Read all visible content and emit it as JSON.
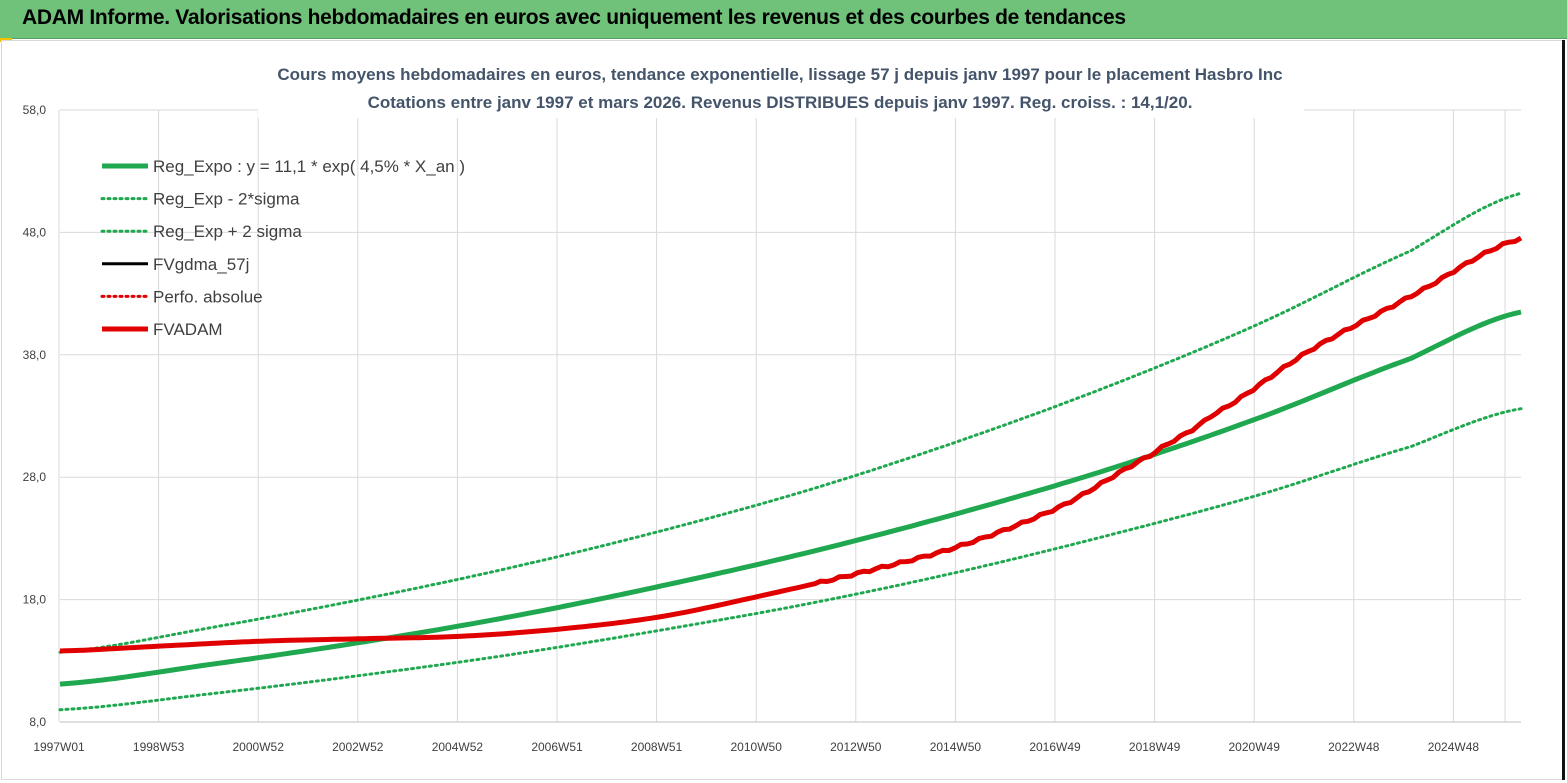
{
  "header": {
    "title": "ADAM Informe. Valorisations hebdomadaires en euros avec uniquement les revenus et des courbes de tendances"
  },
  "colors": {
    "banner": "#70c17a",
    "trend_green": "#1fa84f",
    "fvadam_red": "#e00000",
    "fvgdma_black": "#000000",
    "grid": "#d9d9d9"
  },
  "chart_data": {
    "type": "line",
    "title_line1": "Cours moyens hebdomadaires en euros, tendance exponentielle, lissage 57 j depuis janv 1997 pour le placement Hasbro Inc",
    "title_line2": "Cotations entre janv 1997 et mars 2026. Revenus DISTRIBUES depuis janv 1997. Reg. croiss. : 14,1/20.",
    "x_tick_labels": [
      "1997W01",
      "1998W53",
      "2000W52",
      "2002W52",
      "2004W52",
      "2006W51",
      "2008W51",
      "2010W50",
      "2012W50",
      "2014W50",
      "2016W49",
      "2018W49",
      "2020W49",
      "2022W48",
      "2024W48"
    ],
    "x_range_years": [
      1997.0,
      2026.2
    ],
    "y_tick_labels": [
      "8,0",
      "18,0",
      "28,0",
      "38,0",
      "48,0",
      "58,0"
    ],
    "ylim": [
      8,
      58
    ],
    "grid": true,
    "legend_position": "top-left",
    "series": [
      {
        "name": "Reg_Expo : y = 11,1 * exp( 4,5% *  X_an )",
        "style": "solid-thick",
        "color": "#1fa84f",
        "x": [
          1997,
          2000,
          2003,
          2006,
          2009,
          2012,
          2015,
          2018,
          2021,
          2024,
          2026.2
        ],
        "y": [
          11.1,
          12.7,
          14.5,
          16.6,
          19.1,
          21.9,
          25.1,
          28.7,
          32.9,
          37.7,
          41.5
        ]
      },
      {
        "name": "Reg_Exp - 2*sigma",
        "style": "dotted",
        "color": "#1fa84f",
        "x": [
          1997,
          2000,
          2003,
          2006,
          2009,
          2012,
          2015,
          2018,
          2021,
          2024,
          2026.2
        ],
        "y": [
          9.0,
          10.3,
          11.8,
          13.5,
          15.5,
          17.7,
          20.3,
          23.3,
          26.6,
          30.5,
          33.6
        ]
      },
      {
        "name": "Reg_Exp + 2 sigma",
        "style": "dotted",
        "color": "#1fa84f",
        "x": [
          1997,
          2000,
          2003,
          2006,
          2009,
          2012,
          2015,
          2018,
          2021,
          2024,
          2026.2
        ],
        "y": [
          13.7,
          15.7,
          18.0,
          20.6,
          23.6,
          27.0,
          31.0,
          35.5,
          40.6,
          46.5,
          51.2
        ]
      },
      {
        "name": "FVgdma_57j",
        "style": "solid",
        "color": "#000000",
        "x": [],
        "y": []
      },
      {
        "name": "Perfo. absolue",
        "style": "dotted",
        "color": "#e00000",
        "x": [],
        "y": []
      },
      {
        "name": "FVADAM",
        "style": "solid-thick",
        "color": "#e00000",
        "x": [
          1997,
          1999,
          2001,
          2003,
          2005,
          2007,
          2009,
          2011,
          2013,
          2015,
          2017,
          2018.8,
          2020,
          2022,
          2024,
          2026.2
        ],
        "y": [
          13.8,
          14.2,
          14.6,
          14.8,
          15.0,
          15.6,
          16.6,
          18.3,
          20.2,
          22.4,
          25.6,
          29.8,
          33.0,
          38.4,
          42.8,
          47.5
        ]
      }
    ]
  }
}
